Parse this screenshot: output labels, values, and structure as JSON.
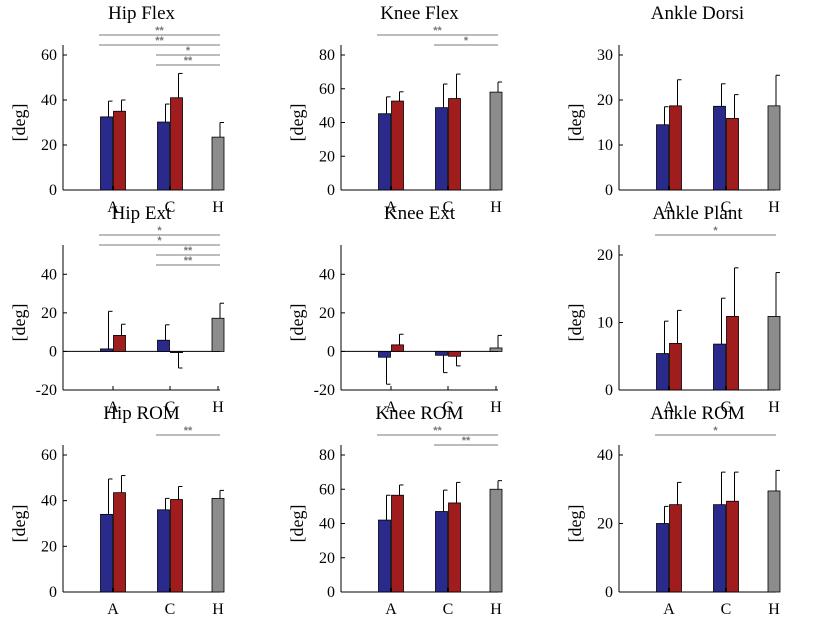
{
  "colors": {
    "A_left": "#2a2a8c",
    "A_right": "#a11c1c",
    "H": "#8c8c8c",
    "sig": "#7a7a7a"
  },
  "chart_data": [
    {
      "type": "bar",
      "title": "Hip Flex",
      "ylabel": "[deg]",
      "categories": [
        "A",
        "C",
        "H"
      ],
      "ylim": [
        0,
        60
      ],
      "yticks": [
        0,
        20,
        40,
        60
      ],
      "series": [
        {
          "name": "left (blue)",
          "values": [
            32.5,
            30.2,
            null
          ],
          "err": [
            7.0,
            8.0,
            null
          ]
        },
        {
          "name": "right (red)",
          "values": [
            35.0,
            41.0,
            null
          ],
          "err": [
            5.0,
            10.8,
            null
          ]
        },
        {
          "name": "healthy (gray)",
          "values": [
            null,
            null,
            23.5
          ],
          "err": [
            null,
            null,
            6.5
          ]
        }
      ],
      "sig": [
        {
          "from": "A",
          "to": "H",
          "label": "**"
        },
        {
          "from": "A",
          "to": "H",
          "label": "**"
        },
        {
          "from": "C",
          "to": "H",
          "label": "*"
        },
        {
          "from": "C",
          "to": "H",
          "label": "**"
        }
      ]
    },
    {
      "type": "bar",
      "title": "Knee Flex",
      "ylabel": "[deg]",
      "categories": [
        "A",
        "C",
        "H"
      ],
      "ylim": [
        0,
        80
      ],
      "yticks": [
        0,
        20,
        40,
        60,
        80
      ],
      "series": [
        {
          "name": "left (blue)",
          "values": [
            45.2,
            48.8,
            null
          ],
          "err": [
            10.0,
            14.0,
            null
          ]
        },
        {
          "name": "right (red)",
          "values": [
            52.7,
            54.2,
            null
          ],
          "err": [
            5.5,
            14.5,
            null
          ]
        },
        {
          "name": "healthy (gray)",
          "values": [
            null,
            null,
            58.0
          ],
          "err": [
            null,
            null,
            6.0
          ]
        }
      ],
      "sig": [
        {
          "from": "A",
          "to": "H",
          "label": "**"
        },
        {
          "from": "C",
          "to": "H",
          "label": "*"
        }
      ]
    },
    {
      "type": "bar",
      "title": "Ankle Dorsi",
      "ylabel": "[deg]",
      "categories": [
        "A",
        "C",
        "H"
      ],
      "ylim": [
        0,
        30
      ],
      "yticks": [
        0,
        10,
        20,
        30
      ],
      "series": [
        {
          "name": "left (blue)",
          "values": [
            14.5,
            18.6,
            null
          ],
          "err": [
            4.0,
            5.0,
            null
          ]
        },
        {
          "name": "right (red)",
          "values": [
            18.7,
            15.9,
            null
          ],
          "err": [
            5.8,
            5.3,
            null
          ]
        },
        {
          "name": "healthy (gray)",
          "values": [
            null,
            null,
            18.7
          ],
          "err": [
            null,
            null,
            6.8
          ]
        }
      ],
      "sig": []
    },
    {
      "type": "bar",
      "title": "Hip Ext",
      "ylabel": "[deg]",
      "categories": [
        "A",
        "C",
        "H"
      ],
      "ylim": [
        -20,
        50
      ],
      "yticks": [
        -20,
        0,
        20,
        40
      ],
      "series": [
        {
          "name": "left (blue)",
          "values": [
            1.3,
            5.8,
            null
          ],
          "err": [
            19.5,
            8.0,
            null
          ]
        },
        {
          "name": "right (red)",
          "values": [
            8.3,
            -0.6,
            null
          ],
          "err": [
            5.8,
            8.0,
            null
          ]
        },
        {
          "name": "healthy (gray)",
          "values": [
            null,
            null,
            17.2
          ],
          "err": [
            null,
            null,
            7.8
          ]
        }
      ],
      "sig": [
        {
          "from": "A",
          "to": "H",
          "label": "*"
        },
        {
          "from": "A",
          "to": "H",
          "label": "*"
        },
        {
          "from": "C",
          "to": "H",
          "label": "**"
        },
        {
          "from": "C",
          "to": "H",
          "label": "**"
        }
      ]
    },
    {
      "type": "bar",
      "title": "Knee Ext",
      "ylabel": "[deg]",
      "categories": [
        "A",
        "C",
        "H"
      ],
      "ylim": [
        -20,
        50
      ],
      "yticks": [
        -20,
        0,
        20,
        40
      ],
      "series": [
        {
          "name": "left (blue)",
          "values": [
            -3.0,
            -2.0,
            null
          ],
          "err": [
            14.0,
            9.0,
            null
          ]
        },
        {
          "name": "right (red)",
          "values": [
            3.4,
            -2.5,
            null
          ],
          "err": [
            5.5,
            5.0,
            null
          ]
        },
        {
          "name": "healthy (gray)",
          "values": [
            null,
            null,
            1.8
          ],
          "err": [
            null,
            null,
            6.5
          ]
        }
      ],
      "sig": []
    },
    {
      "type": "bar",
      "title": "Ankle Plant",
      "ylabel": "[deg]",
      "categories": [
        "A",
        "C",
        "H"
      ],
      "ylim": [
        0,
        20
      ],
      "yticks": [
        0,
        10,
        20
      ],
      "series": [
        {
          "name": "left (blue)",
          "values": [
            5.4,
            6.8,
            null
          ],
          "err": [
            4.8,
            6.8,
            null
          ]
        },
        {
          "name": "right (red)",
          "values": [
            6.9,
            10.9,
            null
          ],
          "err": [
            4.9,
            7.2,
            null
          ]
        },
        {
          "name": "healthy (gray)",
          "values": [
            null,
            null,
            10.9
          ],
          "err": [
            null,
            null,
            6.5
          ]
        }
      ],
      "sig": [
        {
          "from": "A",
          "to": "H",
          "label": "*"
        }
      ]
    },
    {
      "type": "bar",
      "title": "Hip ROM",
      "ylabel": "[deg]",
      "categories": [
        "A",
        "C",
        "H"
      ],
      "ylim": [
        0,
        60
      ],
      "yticks": [
        0,
        20,
        40,
        60
      ],
      "series": [
        {
          "name": "left (blue)",
          "values": [
            34.0,
            36.0,
            null
          ],
          "err": [
            15.5,
            5.0,
            null
          ]
        },
        {
          "name": "right (red)",
          "values": [
            43.5,
            40.5,
            null
          ],
          "err": [
            7.5,
            5.7,
            null
          ]
        },
        {
          "name": "healthy (gray)",
          "values": [
            null,
            null,
            41.0
          ],
          "err": [
            null,
            null,
            3.5
          ]
        }
      ],
      "sig": [
        {
          "from": "C",
          "to": "H",
          "label": "**"
        }
      ]
    },
    {
      "type": "bar",
      "title": "Knee ROM",
      "ylabel": "[deg]",
      "categories": [
        "A",
        "C",
        "H"
      ],
      "ylim": [
        0,
        80
      ],
      "yticks": [
        0,
        20,
        40,
        60,
        80
      ],
      "series": [
        {
          "name": "left (blue)",
          "values": [
            42.0,
            47.0,
            null
          ],
          "err": [
            14.5,
            12.5,
            null
          ]
        },
        {
          "name": "right (red)",
          "values": [
            56.5,
            52.0,
            null
          ],
          "err": [
            6.0,
            12.0,
            null
          ]
        },
        {
          "name": "healthy (gray)",
          "values": [
            null,
            null,
            60.0
          ],
          "err": [
            null,
            null,
            5.0
          ]
        }
      ],
      "sig": [
        {
          "from": "A",
          "to": "H",
          "label": "**"
        },
        {
          "from": "C",
          "to": "H",
          "label": "**"
        }
      ]
    },
    {
      "type": "bar",
      "title": "Ankle ROM",
      "ylabel": "[deg]",
      "categories": [
        "A",
        "C",
        "H"
      ],
      "ylim": [
        0,
        40
      ],
      "yticks": [
        0,
        20,
        40
      ],
      "series": [
        {
          "name": "left (blue)",
          "values": [
            20.0,
            25.5,
            null
          ],
          "err": [
            5.0,
            9.5,
            null
          ]
        },
        {
          "name": "right (red)",
          "values": [
            25.5,
            26.5,
            null
          ],
          "err": [
            6.5,
            8.5,
            null
          ]
        },
        {
          "name": "healthy (gray)",
          "values": [
            null,
            null,
            29.5
          ],
          "err": [
            null,
            null,
            6.0
          ]
        }
      ],
      "sig": [
        {
          "from": "A",
          "to": "H",
          "label": "*"
        }
      ]
    }
  ]
}
